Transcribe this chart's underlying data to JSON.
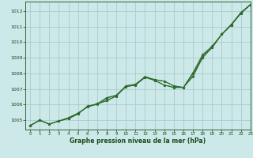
{
  "title": "",
  "xlabel": "Graphe pression niveau de la mer (hPa)",
  "background_color": "#cce8e8",
  "grid_color": "#aacccc",
  "line_color": "#2d6a2d",
  "text_color": "#1a4a1a",
  "xlim": [
    -0.5,
    23
  ],
  "ylim": [
    1004.4,
    1012.6
  ],
  "yticks": [
    1005,
    1006,
    1007,
    1008,
    1009,
    1010,
    1011,
    1012
  ],
  "xticks": [
    0,
    1,
    2,
    3,
    4,
    5,
    6,
    7,
    8,
    9,
    10,
    11,
    12,
    13,
    14,
    15,
    16,
    17,
    18,
    19,
    20,
    21,
    22,
    23
  ],
  "series": [
    [
      1004.65,
      1005.0,
      1004.75,
      1004.95,
      1005.15,
      1005.45,
      1005.85,
      1006.05,
      1006.25,
      1006.55,
      1007.2,
      1007.3,
      1007.75,
      1007.6,
      1007.5,
      1007.2,
      1007.1,
      1008.0,
      1009.0,
      1009.7,
      1010.5,
      1011.1,
      1011.85,
      1012.4
    ],
    [
      1004.65,
      1005.0,
      1004.75,
      1004.95,
      1005.15,
      1005.45,
      1005.85,
      1006.05,
      1006.25,
      1006.55,
      1007.15,
      1007.25,
      1007.75,
      1007.55,
      1007.25,
      1007.1,
      1007.1,
      1007.85,
      1009.15,
      1009.65,
      1010.5,
      1011.1,
      1011.85,
      1012.4
    ],
    [
      1004.65,
      1005.0,
      1004.75,
      1004.95,
      1005.1,
      1005.4,
      1005.9,
      1006.0,
      1006.4,
      1006.6,
      1007.15,
      1007.25,
      1007.75,
      1007.55,
      1007.25,
      1007.1,
      1007.1,
      1008.05,
      1009.2,
      1009.75,
      1010.5,
      1011.15,
      1011.9,
      1012.42
    ],
    [
      1004.65,
      1005.0,
      1004.75,
      1004.95,
      1005.1,
      1005.4,
      1005.9,
      1006.05,
      1006.45,
      1006.6,
      1007.2,
      1007.3,
      1007.8,
      1007.6,
      1007.5,
      1007.2,
      1007.1,
      1007.8,
      1009.0,
      1009.65,
      1010.5,
      1011.1,
      1011.9,
      1012.4
    ]
  ]
}
